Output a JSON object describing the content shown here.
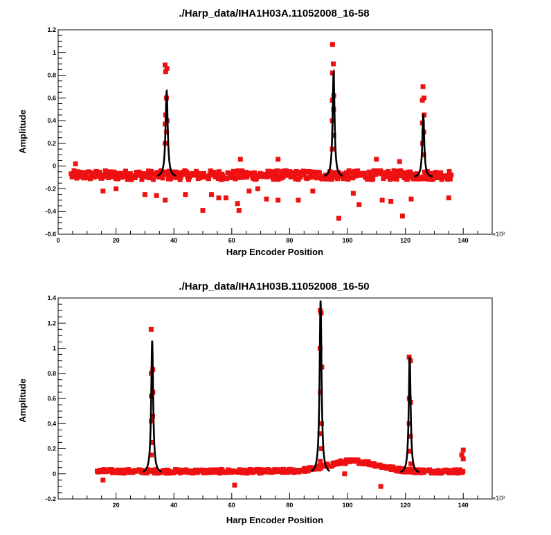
{
  "chart_data": [
    {
      "type": "scatter",
      "title": "./Harp_data/IHA1H03A.11052008_16-58",
      "xlabel": "Harp Encoder Position",
      "ylabel": "Amplitude",
      "x_multiplier": "×10³",
      "xlim": [
        0,
        150
      ],
      "ylim": [
        -0.6,
        1.2
      ],
      "x_ticks": [
        0,
        20,
        40,
        60,
        80,
        100,
        120,
        140
      ],
      "x_tick_labels": [
        "0",
        "20",
        "40",
        "60",
        "80",
        "100",
        "120",
        "140"
      ],
      "y_ticks": [
        -0.6,
        -0.4,
        -0.2,
        0,
        0.2,
        0.4,
        0.6,
        0.8,
        1,
        1.2
      ],
      "y_tick_labels": [
        "-0.6",
        "-0.4",
        "-0.2",
        "0",
        "0.2",
        "0.4",
        "0.6",
        "0.8",
        "1",
        "1.2"
      ],
      "colors": {
        "data": "#ee1111",
        "fit": "#000000"
      },
      "series": [
        {
          "kind": "data",
          "baseline_x_range": [
            4.5,
            136
          ],
          "baseline_level": -0.08,
          "baseline_noise": 0.04,
          "peaks": [
            {
              "x": 37.3,
              "points": [
                0.89,
                0.86,
                0.83,
                0.6,
                0.45,
                0.4,
                0.37,
                0.3,
                0.2
              ]
            },
            {
              "x": 95.0,
              "points": [
                1.07,
                0.9,
                0.82,
                0.62,
                0.58,
                0.5,
                0.4,
                0.27,
                0.15
              ]
            },
            {
              "x": 126.2,
              "points": [
                0.7,
                0.6,
                0.58,
                0.45,
                0.38,
                0.3,
                0.2,
                0.1
              ]
            }
          ],
          "outliers": [
            {
              "x": 6.0,
              "y": 0.02
            },
            {
              "x": 15.5,
              "y": -0.22
            },
            {
              "x": 20.0,
              "y": -0.2
            },
            {
              "x": 30.0,
              "y": -0.25
            },
            {
              "x": 34.0,
              "y": -0.26
            },
            {
              "x": 37.0,
              "y": -0.3
            },
            {
              "x": 44.0,
              "y": -0.25
            },
            {
              "x": 50.0,
              "y": -0.39
            },
            {
              "x": 53.0,
              "y": -0.25
            },
            {
              "x": 55.5,
              "y": -0.28
            },
            {
              "x": 58.0,
              "y": -0.28
            },
            {
              "x": 62.0,
              "y": -0.33
            },
            {
              "x": 62.5,
              "y": -0.39
            },
            {
              "x": 63.0,
              "y": 0.06
            },
            {
              "x": 66.0,
              "y": -0.22
            },
            {
              "x": 69.0,
              "y": -0.2
            },
            {
              "x": 72.0,
              "y": -0.29
            },
            {
              "x": 76.0,
              "y": 0.06
            },
            {
              "x": 76.0,
              "y": -0.3
            },
            {
              "x": 83.0,
              "y": -0.3
            },
            {
              "x": 88.0,
              "y": -0.22
            },
            {
              "x": 97.0,
              "y": -0.46
            },
            {
              "x": 102.0,
              "y": -0.24
            },
            {
              "x": 104.0,
              "y": -0.34
            },
            {
              "x": 110.0,
              "y": 0.06
            },
            {
              "x": 112.0,
              "y": -0.3
            },
            {
              "x": 115.0,
              "y": -0.31
            },
            {
              "x": 118.0,
              "y": 0.04
            },
            {
              "x": 119.0,
              "y": -0.44
            },
            {
              "x": 122.0,
              "y": -0.29
            },
            {
              "x": 135.0,
              "y": -0.28
            }
          ]
        },
        {
          "kind": "fit",
          "baseline": -0.1,
          "peaks": [
            {
              "x": 37.5,
              "amp": 0.76,
              "width": 0.45
            },
            {
              "x": 95.2,
              "amp": 0.93,
              "width": 0.4
            },
            {
              "x": 126.2,
              "amp": 0.55,
              "width": 0.4
            }
          ]
        }
      ]
    },
    {
      "type": "scatter",
      "title": "./Harp_data/IHA1H03B.11052008_16-50",
      "xlabel": "Harp Encoder Position",
      "ylabel": "Amplitude",
      "x_multiplier": "×10³",
      "xlim": [
        0,
        150
      ],
      "ylim": [
        -0.2,
        1.4
      ],
      "x_ticks": [
        20,
        40,
        60,
        80,
        100,
        120,
        140
      ],
      "x_tick_labels": [
        "20",
        "40",
        "60",
        "80",
        "100",
        "120",
        "140"
      ],
      "y_ticks": [
        -0.2,
        0,
        0.2,
        0.4,
        0.6,
        0.8,
        1,
        1.2,
        1.4
      ],
      "y_tick_labels": [
        "-0.2",
        "0",
        "0.2",
        "0.4",
        "0.6",
        "0.8",
        "1",
        "1.2",
        "1.4"
      ],
      "colors": {
        "data": "#ee1111",
        "fit": "#000000"
      },
      "series": [
        {
          "kind": "data",
          "baseline_x_range": [
            13.5,
            140
          ],
          "baseline_level": 0.02,
          "baseline_noise": 0.015,
          "bump": {
            "center": 102,
            "height": 0.08,
            "width": 12
          },
          "peaks": [
            {
              "x": 32.4,
              "points": [
                1.15,
                0.83,
                0.8,
                0.65,
                0.62,
                0.46,
                0.42,
                0.25,
                0.15
              ]
            },
            {
              "x": 90.8,
              "points": [
                1.3,
                1.28,
                1.0,
                0.85,
                0.65,
                0.4,
                0.32,
                0.2,
                0.1
              ]
            },
            {
              "x": 121.6,
              "points": [
                0.93,
                0.9,
                0.6,
                0.57,
                0.4,
                0.3,
                0.18,
                0.08
              ]
            }
          ],
          "outliers": [
            {
              "x": 15.5,
              "y": -0.05
            },
            {
              "x": 61.0,
              "y": -0.09
            },
            {
              "x": 99.0,
              "y": 0.0
            },
            {
              "x": 111.5,
              "y": -0.1
            },
            {
              "x": 140.0,
              "y": 0.19
            },
            {
              "x": 139.5,
              "y": 0.15
            },
            {
              "x": 140.0,
              "y": 0.12
            }
          ]
        },
        {
          "kind": "fit",
          "baseline": 0.0,
          "peaks": [
            {
              "x": 32.5,
              "amp": 1.06,
              "width": 0.4
            },
            {
              "x": 90.7,
              "amp": 1.38,
              "width": 0.4
            },
            {
              "x": 121.5,
              "amp": 0.93,
              "width": 0.4
            }
          ]
        }
      ]
    }
  ]
}
